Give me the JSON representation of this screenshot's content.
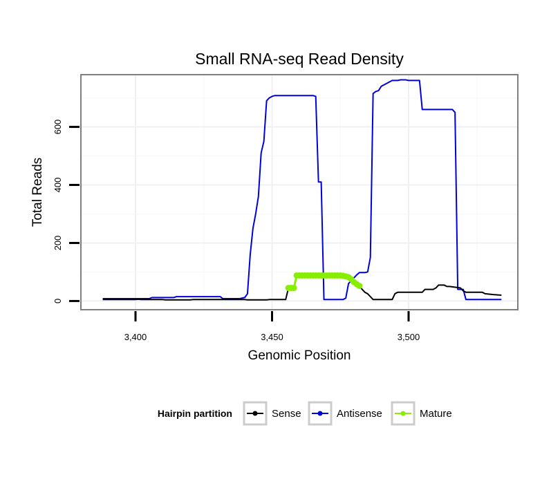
{
  "chart_data": {
    "type": "line",
    "title": "Small RNA-seq Read Density",
    "xlabel": "Genomic Position",
    "ylabel": "Total Reads",
    "xlim": [
      3380,
      3540
    ],
    "ylim": [
      -30,
      780
    ],
    "x_ticks": [
      3400,
      3450,
      3500
    ],
    "x_tick_labels": [
      "3,400",
      "3,450",
      "3,500"
    ],
    "y_ticks": [
      0,
      200,
      400,
      600
    ],
    "y_tick_labels": [
      "0",
      "200",
      "400",
      "600"
    ],
    "legend": {
      "title": "Hairpin partition",
      "placement": "bottom"
    },
    "series": [
      {
        "name": "Antisense",
        "color": "#0000dd",
        "markers": false,
        "x": [
          3388,
          3405,
          3406,
          3414,
          3415,
          3431,
          3432,
          3438,
          3440,
          3441,
          3442,
          3443,
          3444,
          3445,
          3446,
          3447,
          3448,
          3449,
          3450,
          3451,
          3452,
          3460,
          3465,
          3466,
          3467,
          3468,
          3469,
          3470,
          3475,
          3476,
          3477,
          3478,
          3479,
          3480,
          3481,
          3482,
          3484,
          3485,
          3486,
          3487,
          3488,
          3489,
          3490,
          3492,
          3493,
          3494,
          3496,
          3497,
          3498,
          3499,
          3500,
          3504,
          3505,
          3516,
          3517,
          3518,
          3520,
          3521,
          3534
        ],
        "y": [
          8,
          8,
          12,
          12,
          15,
          15,
          8,
          8,
          12,
          25,
          160,
          250,
          300,
          360,
          510,
          550,
          690,
          700,
          705,
          708,
          708,
          708,
          708,
          705,
          410,
          410,
          5,
          5,
          5,
          5,
          10,
          60,
          70,
          80,
          90,
          98,
          98,
          100,
          150,
          715,
          722,
          725,
          740,
          750,
          755,
          760,
          760,
          762,
          762,
          762,
          760,
          760,
          660,
          660,
          650,
          40,
          40,
          5,
          5
        ]
      },
      {
        "name": "Sense",
        "color": "#000000",
        "markers": false,
        "x": [
          3388,
          3400,
          3401,
          3402,
          3410,
          3411,
          3420,
          3421,
          3440,
          3441,
          3448,
          3449,
          3455,
          3456,
          3457,
          3458,
          3459,
          3478,
          3479,
          3480,
          3481,
          3482,
          3483,
          3484,
          3485,
          3486,
          3487,
          3488,
          3489,
          3490,
          3491,
          3492,
          3493,
          3494,
          3495,
          3496,
          3505,
          3506,
          3507,
          3509,
          3510,
          3511,
          3513,
          3514,
          3515,
          3519,
          3520,
          3521,
          3527,
          3528,
          3531,
          3534
        ],
        "y": [
          5,
          5,
          6,
          5,
          5,
          4,
          4,
          5,
          5,
          4,
          4,
          5,
          5,
          45,
          45,
          45,
          90,
          90,
          80,
          70,
          55,
          50,
          40,
          30,
          25,
          15,
          5,
          5,
          5,
          5,
          5,
          5,
          5,
          5,
          25,
          30,
          30,
          40,
          40,
          40,
          45,
          55,
          55,
          50,
          50,
          45,
          35,
          30,
          30,
          25,
          22,
          20
        ]
      },
      {
        "name": "Mature",
        "color": "#88ee00",
        "markers": true,
        "x": [
          3456,
          3457,
          3458,
          3459,
          3460,
          3461,
          3462,
          3463,
          3464,
          3465,
          3466,
          3467,
          3468,
          3469,
          3470,
          3471,
          3472,
          3473,
          3474,
          3475,
          3476,
          3477,
          3478,
          3479,
          3480,
          3481,
          3482
        ],
        "y": [
          45,
          45,
          45,
          88,
          88,
          88,
          88,
          88,
          88,
          88,
          88,
          88,
          88,
          88,
          88,
          88,
          88,
          88,
          88,
          88,
          87,
          85,
          82,
          75,
          65,
          58,
          52
        ]
      }
    ]
  }
}
